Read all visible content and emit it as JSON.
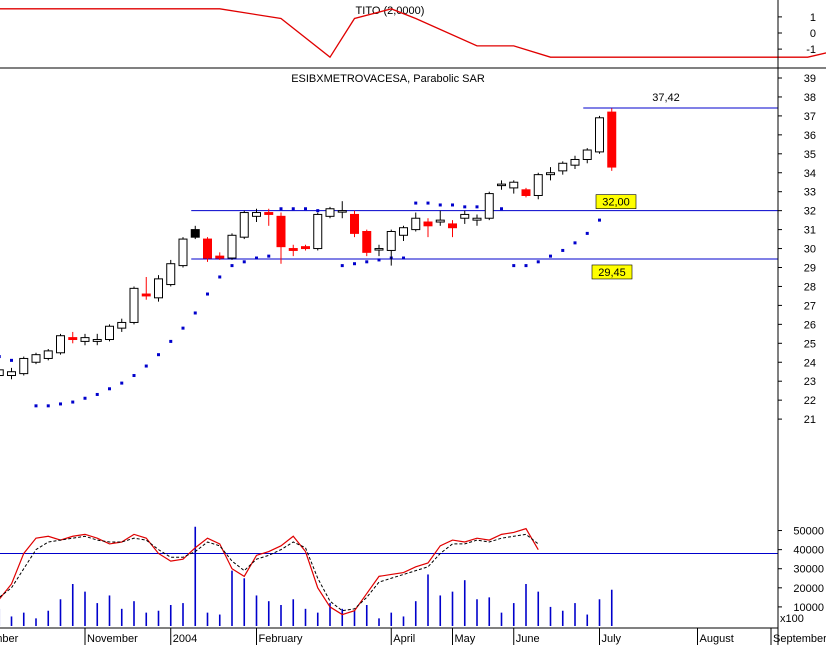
{
  "colors": {
    "up": "#ffffff",
    "down": "#ff0000",
    "sar": "#0000cc",
    "level": "#0000cc",
    "indicator": "#e00000",
    "volume": "#0000cc",
    "label_bg": "#ffff00",
    "special": "#000000"
  },
  "chart_data": [
    {
      "type": "line",
      "title": "TITO (2,0000)",
      "y_ticks": [
        "1",
        "0",
        "-1"
      ],
      "ylim": [
        -1.8,
        1.8
      ],
      "x": [
        -25,
        -12,
        -5,
        0,
        4,
        6,
        9,
        11,
        16,
        19,
        22,
        35,
        43,
        47,
        48,
        49,
        50,
        51,
        64
      ],
      "values": [
        1.5,
        1.5,
        1.5,
        0.9,
        -1.5,
        0.9,
        1.5,
        0.9,
        -0.8,
        -0.8,
        -1.5,
        -1.5,
        -1.5,
        -0.8,
        -0.8,
        0.0,
        1.5,
        1.5,
        1.5
      ]
    },
    {
      "type": "candlestick",
      "title": "ESIBXMETROVACESA, Parabolic SAR",
      "ylim": [
        20.3,
        39.4
      ],
      "y_ticks": [
        "21",
        "22",
        "23",
        "24",
        "25",
        "26",
        "27",
        "28",
        "29",
        "30",
        "31",
        "32",
        "33",
        "34",
        "35",
        "36",
        "37",
        "38",
        "39"
      ],
      "x_ticks": [
        {
          "label": "August",
          "x": -31
        },
        {
          "label": "September",
          "x": -26
        },
        {
          "label": "November",
          "x": -16
        },
        {
          "label": "2004",
          "x": -9
        },
        {
          "label": "February",
          "x": -2
        },
        {
          "label": "April",
          "x": 9
        },
        {
          "label": "May",
          "x": 14
        },
        {
          "label": "June",
          "x": 19
        },
        {
          "label": "July",
          "x": 26
        },
        {
          "label": "August",
          "x": 34
        },
        {
          "label": "September",
          "x": 40
        },
        {
          "label": "Novemb",
          "x": 52
        }
      ],
      "candles": [
        {
          "x": -31,
          "open": 21.8,
          "high": 22.7,
          "low": 21.6,
          "close": 22.6
        },
        {
          "x": -30,
          "open": 22.5,
          "high": 22.7,
          "low": 22.2,
          "close": 22.4
        },
        {
          "x": -29,
          "open": 22.3,
          "high": 22.7,
          "low": 22.1,
          "close": 22.6
        },
        {
          "x": -28,
          "open": 22.4,
          "high": 22.9,
          "low": 22.3,
          "close": 22.7
        },
        {
          "x": -27,
          "open": 22.6,
          "high": 22.9,
          "low": 22.5,
          "close": 22.8
        },
        {
          "x": -26,
          "open": 22.7,
          "high": 23.4,
          "low": 22.6,
          "close": 23.3
        },
        {
          "x": -25,
          "open": 23.3,
          "high": 24.0,
          "low": 23.0,
          "close": 23.8
        },
        {
          "x": -24,
          "open": 23.6,
          "high": 23.7,
          "low": 23.2,
          "close": 23.3
        },
        {
          "x": -23,
          "open": 23.3,
          "high": 23.8,
          "low": 23.0,
          "close": 23.6
        },
        {
          "x": -22,
          "open": 23.3,
          "high": 23.7,
          "low": 23.1,
          "close": 23.5
        },
        {
          "x": -21,
          "open": 23.4,
          "high": 24.3,
          "low": 23.3,
          "close": 24.2
        },
        {
          "x": -20,
          "open": 24.0,
          "high": 24.5,
          "low": 23.9,
          "close": 24.4
        },
        {
          "x": -19,
          "open": 24.2,
          "high": 24.7,
          "low": 24.1,
          "close": 24.6
        },
        {
          "x": -18,
          "open": 24.5,
          "high": 25.5,
          "low": 24.4,
          "close": 25.4
        },
        {
          "x": -17,
          "open": 25.3,
          "high": 25.6,
          "low": 25.0,
          "close": 25.2
        },
        {
          "x": -16,
          "open": 25.1,
          "high": 25.5,
          "low": 24.9,
          "close": 25.3
        },
        {
          "x": -15,
          "open": 25.1,
          "high": 25.5,
          "low": 24.9,
          "close": 25.2
        },
        {
          "x": -14,
          "open": 25.2,
          "high": 26.0,
          "low": 25.1,
          "close": 25.9
        },
        {
          "x": -13,
          "open": 25.8,
          "high": 26.3,
          "low": 25.6,
          "close": 26.1
        },
        {
          "x": -12,
          "open": 26.1,
          "high": 28.0,
          "low": 26.0,
          "close": 27.9
        },
        {
          "x": -11,
          "open": 27.6,
          "high": 28.5,
          "low": 27.3,
          "close": 27.5
        },
        {
          "x": -10,
          "open": 27.4,
          "high": 28.6,
          "low": 27.2,
          "close": 28.4
        },
        {
          "x": -9,
          "open": 28.1,
          "high": 29.4,
          "low": 28.0,
          "close": 29.2
        },
        {
          "x": -8,
          "open": 29.1,
          "high": 30.6,
          "low": 29.0,
          "close": 30.5
        },
        {
          "x": -7,
          "open": 31.0,
          "high": 31.2,
          "low": 30.5,
          "close": 30.6,
          "special": true
        },
        {
          "x": -6,
          "open": 30.5,
          "high": 30.6,
          "low": 29.3,
          "close": 29.5
        },
        {
          "x": -5,
          "open": 29.6,
          "high": 29.8,
          "low": 29.4,
          "close": 29.5
        },
        {
          "x": -4,
          "open": 29.5,
          "high": 30.8,
          "low": 29.4,
          "close": 30.7
        },
        {
          "x": -3,
          "open": 30.6,
          "high": 32.0,
          "low": 30.5,
          "close": 31.9
        },
        {
          "x": -2,
          "open": 31.7,
          "high": 32.1,
          "low": 31.4,
          "close": 31.9
        },
        {
          "x": -1,
          "open": 31.9,
          "high": 32.1,
          "low": 31.2,
          "close": 31.8
        },
        {
          "x": 0,
          "open": 31.7,
          "high": 31.9,
          "low": 29.2,
          "close": 30.1
        },
        {
          "x": 1,
          "open": 30.0,
          "high": 30.2,
          "low": 29.6,
          "close": 29.9
        },
        {
          "x": 2,
          "open": 30.1,
          "high": 30.2,
          "low": 29.9,
          "close": 30.0
        },
        {
          "x": 3,
          "open": 30.0,
          "high": 31.9,
          "low": 29.9,
          "close": 31.8
        },
        {
          "x": 4,
          "open": 31.7,
          "high": 32.2,
          "low": 31.6,
          "close": 32.1
        },
        {
          "x": 5,
          "open": 32.0,
          "high": 32.5,
          "low": 31.6,
          "close": 32.0
        },
        {
          "x": 6,
          "open": 31.8,
          "high": 32.0,
          "low": 30.6,
          "close": 30.8
        },
        {
          "x": 7,
          "open": 30.9,
          "high": 31.0,
          "low": 29.6,
          "close": 29.8
        },
        {
          "x": 8,
          "open": 30.0,
          "high": 30.2,
          "low": 29.6,
          "close": 30.0
        },
        {
          "x": 9,
          "open": 29.9,
          "high": 31.0,
          "low": 29.1,
          "close": 30.9
        },
        {
          "x": 10,
          "open": 30.7,
          "high": 31.2,
          "low": 30.4,
          "close": 31.1
        },
        {
          "x": 11,
          "open": 31.0,
          "high": 31.9,
          "low": 30.9,
          "close": 31.6
        },
        {
          "x": 12,
          "open": 31.4,
          "high": 31.6,
          "low": 30.6,
          "close": 31.2
        },
        {
          "x": 13,
          "open": 31.4,
          "high": 32.0,
          "low": 31.2,
          "close": 31.5
        },
        {
          "x": 14,
          "open": 31.3,
          "high": 31.5,
          "low": 30.6,
          "close": 31.1
        },
        {
          "x": 15,
          "open": 31.6,
          "high": 32.0,
          "low": 31.3,
          "close": 31.8
        },
        {
          "x": 16,
          "open": 31.5,
          "high": 31.8,
          "low": 31.2,
          "close": 31.6
        },
        {
          "x": 17,
          "open": 31.6,
          "high": 33.0,
          "low": 31.5,
          "close": 32.9
        },
        {
          "x": 18,
          "open": 33.4,
          "high": 33.6,
          "low": 33.1,
          "close": 33.4
        },
        {
          "x": 19,
          "open": 33.2,
          "high": 33.6,
          "low": 32.9,
          "close": 33.5
        },
        {
          "x": 20,
          "open": 33.1,
          "high": 33.2,
          "low": 32.7,
          "close": 32.8
        },
        {
          "x": 21,
          "open": 32.8,
          "high": 34.0,
          "low": 32.6,
          "close": 33.9
        },
        {
          "x": 22,
          "open": 33.9,
          "high": 34.3,
          "low": 33.6,
          "close": 34.0
        },
        {
          "x": 23,
          "open": 34.1,
          "high": 34.6,
          "low": 33.9,
          "close": 34.5
        },
        {
          "x": 24,
          "open": 34.4,
          "high": 34.9,
          "low": 34.2,
          "close": 34.7
        },
        {
          "x": 25,
          "open": 34.7,
          "high": 35.3,
          "low": 34.5,
          "close": 35.2
        },
        {
          "x": 26,
          "open": 35.1,
          "high": 37.0,
          "low": 35.0,
          "close": 36.9
        },
        {
          "x": 27,
          "open": 37.2,
          "high": 37.4,
          "low": 34.1,
          "close": 34.3
        }
      ],
      "sar": [
        {
          "x": -31,
          "y": 25.9
        },
        {
          "x": -30,
          "y": 25.7
        },
        {
          "x": -29,
          "y": 25.5
        },
        {
          "x": -28,
          "y": 25.3
        },
        {
          "x": -27,
          "y": 25.1
        },
        {
          "x": -26,
          "y": 24.9
        },
        {
          "x": -25,
          "y": 24.7
        },
        {
          "x": -24,
          "y": 24.5
        },
        {
          "x": -23,
          "y": 24.3
        },
        {
          "x": -22,
          "y": 24.1
        },
        {
          "x": -21,
          "y": 24.0
        },
        {
          "x": -20,
          "y": 21.7
        },
        {
          "x": -19,
          "y": 21.7
        },
        {
          "x": -18,
          "y": 21.8
        },
        {
          "x": -17,
          "y": 21.9
        },
        {
          "x": -16,
          "y": 22.1
        },
        {
          "x": -15,
          "y": 22.3
        },
        {
          "x": -14,
          "y": 22.6
        },
        {
          "x": -13,
          "y": 22.9
        },
        {
          "x": -12,
          "y": 23.3
        },
        {
          "x": -11,
          "y": 23.8
        },
        {
          "x": -10,
          "y": 24.4
        },
        {
          "x": -9,
          "y": 25.1
        },
        {
          "x": -8,
          "y": 25.8
        },
        {
          "x": -7,
          "y": 26.6
        },
        {
          "x": -6,
          "y": 27.6
        },
        {
          "x": -5,
          "y": 28.5
        },
        {
          "x": -4,
          "y": 29.1
        },
        {
          "x": -3,
          "y": 29.3
        },
        {
          "x": -2,
          "y": 29.5
        },
        {
          "x": -1,
          "y": 29.6
        },
        {
          "x": 0,
          "y": 32.1
        },
        {
          "x": 1,
          "y": 32.1
        },
        {
          "x": 2,
          "y": 32.1
        },
        {
          "x": 3,
          "y": 32.0
        },
        {
          "x": 4,
          "y": 32.0
        },
        {
          "x": 5,
          "y": 29.1
        },
        {
          "x": 6,
          "y": 29.2
        },
        {
          "x": 7,
          "y": 29.3
        },
        {
          "x": 8,
          "y": 29.4
        },
        {
          "x": 9,
          "y": 29.5
        },
        {
          "x": 10,
          "y": 29.5
        },
        {
          "x": 11,
          "y": 32.4
        },
        {
          "x": 12,
          "y": 32.4
        },
        {
          "x": 13,
          "y": 32.3
        },
        {
          "x": 14,
          "y": 32.3
        },
        {
          "x": 15,
          "y": 32.2
        },
        {
          "x": 16,
          "y": 32.2
        },
        {
          "x": 17,
          "y": 32.1
        },
        {
          "x": 18,
          "y": 32.1
        },
        {
          "x": 19,
          "y": 29.1
        },
        {
          "x": 20,
          "y": 29.1
        },
        {
          "x": 21,
          "y": 29.3
        },
        {
          "x": 22,
          "y": 29.6
        },
        {
          "x": 23,
          "y": 29.9
        },
        {
          "x": 24,
          "y": 30.3
        },
        {
          "x": 25,
          "y": 30.8
        },
        {
          "x": 26,
          "y": 31.5
        },
        {
          "x": 27,
          "y": 32.3
        },
        {
          "x": 28,
          "y": 32.6
        }
      ],
      "levels": [
        {
          "value": 37.42,
          "label": "37,42",
          "x_start": 25
        },
        {
          "value": 32.0,
          "label": "32,00",
          "x_start": -7
        },
        {
          "value": 29.45,
          "label": "29,45",
          "x_start": -7
        }
      ]
    },
    {
      "type": "bar",
      "series_type": "volume + oscillator",
      "ylim": [
        0,
        55000
      ],
      "y_ticks": [
        "50000",
        "40000",
        "30000",
        "20000",
        "10000"
      ],
      "unit_note": "x100",
      "reference_line": 38000,
      "x": [
        -31,
        -29,
        -28,
        -27,
        -26,
        -25,
        -24,
        -23,
        -22,
        -21,
        -20,
        -19,
        -18,
        -17,
        -16,
        -15,
        -14,
        -13,
        -12,
        -11,
        -10,
        -9,
        -8,
        -7,
        -6,
        -5,
        -4,
        -3,
        -2,
        -1,
        0,
        1,
        2,
        3,
        4,
        5,
        6,
        7,
        8,
        9,
        10,
        11,
        12,
        13,
        14,
        15,
        16,
        17,
        18,
        19,
        20,
        21,
        22,
        23,
        24,
        25,
        26,
        27
      ],
      "volume": [
        19000,
        4000,
        8000,
        5000,
        7000,
        4000,
        6000,
        9000,
        5000,
        7000,
        4000,
        8000,
        14000,
        22000,
        18000,
        12000,
        16000,
        9000,
        13000,
        7000,
        8000,
        11000,
        12000,
        52000,
        7000,
        6000,
        29000,
        25000,
        16000,
        13000,
        11000,
        14000,
        9000,
        7000,
        12000,
        9000,
        8000,
        11000,
        4000,
        7000,
        5000,
        13000,
        27000,
        16000,
        18000,
        24000,
        14000,
        15000,
        7000,
        12000,
        22000,
        18000,
        10000,
        8000,
        12000,
        6000,
        14000,
        19000
      ],
      "osc_main": [
        9000,
        14000,
        22000,
        38000,
        46000,
        47000,
        45000,
        47000,
        48000,
        46000,
        43000,
        44000,
        48000,
        46000,
        38000,
        34000,
        35000,
        41000,
        46000,
        43000,
        30000,
        26000,
        37000,
        39000,
        42000,
        47000,
        39000,
        20000,
        10000,
        6000,
        8000,
        17000,
        26000,
        27000,
        28000,
        31000,
        33000,
        42000,
        45000,
        44000,
        46000,
        45000,
        48000,
        49000,
        51000,
        40000
      ],
      "osc_signal": [
        11000,
        15000,
        20000,
        30000,
        40000,
        44000,
        45000,
        46000,
        47000,
        45000,
        44000,
        44000,
        46000,
        45000,
        40000,
        36000,
        36000,
        39000,
        44000,
        42000,
        34000,
        29000,
        35000,
        37000,
        40000,
        44000,
        41000,
        25000,
        13000,
        8000,
        9000,
        15000,
        23000,
        25000,
        27000,
        29000,
        31000,
        38000,
        43000,
        43000,
        45000,
        44000,
        46000,
        47000,
        48000,
        43000
      ],
      "osc_x_start": -24
    }
  ]
}
